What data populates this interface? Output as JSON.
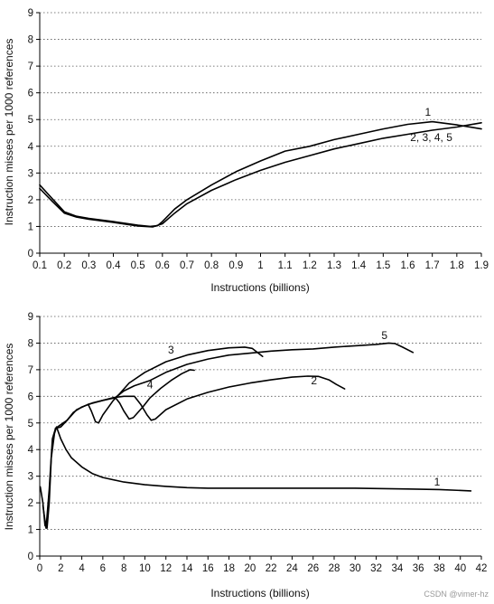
{
  "chart_data": [
    {
      "type": "line",
      "title": "",
      "xlabel": "Instructions (billions)",
      "ylabel": "Instruction misses per 1000 references",
      "xlim": [
        0.1,
        1.9
      ],
      "ylim": [
        0,
        9
      ],
      "xticks": [
        "0.1",
        "0.2",
        "0.3",
        "0.4",
        "0.5",
        "0.6",
        "0.7",
        "0.8",
        "0.9",
        "1",
        "1.1",
        "1.2",
        "1.3",
        "1.4",
        "1.5",
        "1.6",
        "1.7",
        "1.8",
        "1.9"
      ],
      "yticks": [
        "0",
        "1",
        "2",
        "3",
        "4",
        "5",
        "6",
        "7",
        "8",
        "9"
      ],
      "grid": "horizontal dotted",
      "series": [
        {
          "name": "1",
          "points": [
            [
              0.1,
              2.55
            ],
            [
              0.15,
              2.05
            ],
            [
              0.2,
              1.55
            ],
            [
              0.25,
              1.38
            ],
            [
              0.3,
              1.3
            ],
            [
              0.4,
              1.18
            ],
            [
              0.5,
              1.05
            ],
            [
              0.55,
              1.0
            ],
            [
              0.58,
              1.03
            ],
            [
              0.6,
              1.18
            ],
            [
              0.65,
              1.65
            ],
            [
              0.7,
              2.0
            ],
            [
              0.8,
              2.55
            ],
            [
              0.9,
              3.05
            ],
            [
              1.0,
              3.45
            ],
            [
              1.1,
              3.82
            ],
            [
              1.2,
              4.0
            ],
            [
              1.3,
              4.25
            ],
            [
              1.4,
              4.45
            ],
            [
              1.5,
              4.65
            ],
            [
              1.6,
              4.82
            ],
            [
              1.7,
              4.92
            ],
            [
              1.8,
              4.8
            ],
            [
              1.9,
              4.65
            ]
          ]
        },
        {
          "name": "2, 3, 4, 5",
          "points": [
            [
              0.1,
              2.42
            ],
            [
              0.15,
              1.95
            ],
            [
              0.2,
              1.5
            ],
            [
              0.25,
              1.35
            ],
            [
              0.3,
              1.27
            ],
            [
              0.4,
              1.15
            ],
            [
              0.5,
              1.02
            ],
            [
              0.56,
              0.98
            ],
            [
              0.6,
              1.1
            ],
            [
              0.65,
              1.5
            ],
            [
              0.7,
              1.85
            ],
            [
              0.8,
              2.35
            ],
            [
              0.9,
              2.75
            ],
            [
              1.0,
              3.1
            ],
            [
              1.1,
              3.4
            ],
            [
              1.2,
              3.65
            ],
            [
              1.3,
              3.9
            ],
            [
              1.4,
              4.1
            ],
            [
              1.5,
              4.3
            ],
            [
              1.6,
              4.45
            ],
            [
              1.7,
              4.6
            ],
            [
              1.8,
              4.72
            ],
            [
              1.9,
              4.88
            ]
          ]
        }
      ],
      "annotations": [
        {
          "text": "1",
          "x": 1.67,
          "y": 5.15
        },
        {
          "text": "2, 3, 4, 5",
          "x": 1.61,
          "y": 4.2
        }
      ]
    },
    {
      "type": "line",
      "title": "",
      "xlabel": "Instructions (billions)",
      "ylabel": "Instruction misses per 1000 references",
      "xlim": [
        0,
        42
      ],
      "ylim": [
        0,
        9
      ],
      "xticks": [
        "0",
        "2",
        "4",
        "6",
        "8",
        "10",
        "12",
        "14",
        "16",
        "18",
        "20",
        "22",
        "24",
        "26",
        "28",
        "30",
        "32",
        "34",
        "36",
        "38",
        "40",
        "42"
      ],
      "yticks": [
        "0",
        "1",
        "2",
        "3",
        "4",
        "5",
        "6",
        "7",
        "8",
        "9"
      ],
      "grid": "horizontal dotted",
      "series": [
        {
          "name": "1",
          "points": [
            [
              0.05,
              2.6
            ],
            [
              0.3,
              2.0
            ],
            [
              0.5,
              1.15
            ],
            [
              0.7,
              1.05
            ],
            [
              0.9,
              2.0
            ],
            [
              1.1,
              3.7
            ],
            [
              1.4,
              4.6
            ],
            [
              1.6,
              4.85
            ],
            [
              2.0,
              4.4
            ],
            [
              2.5,
              4.0
            ],
            [
              3.0,
              3.7
            ],
            [
              4.0,
              3.35
            ],
            [
              5.0,
              3.1
            ],
            [
              6.0,
              2.95
            ],
            [
              8.0,
              2.78
            ],
            [
              10,
              2.68
            ],
            [
              12,
              2.62
            ],
            [
              14,
              2.57
            ],
            [
              16,
              2.55
            ],
            [
              20,
              2.55
            ],
            [
              25,
              2.55
            ],
            [
              30,
              2.55
            ],
            [
              35,
              2.52
            ],
            [
              38,
              2.5
            ],
            [
              41,
              2.45
            ]
          ]
        },
        {
          "name": "2",
          "points": [
            [
              0.3,
              1.9
            ],
            [
              0.6,
              1.05
            ],
            [
              0.9,
              2.5
            ],
            [
              1.2,
              4.4
            ],
            [
              1.5,
              4.8
            ],
            [
              2.0,
              4.85
            ],
            [
              2.6,
              5.1
            ],
            [
              3.2,
              5.4
            ],
            [
              4.0,
              5.6
            ],
            [
              5.0,
              5.75
            ],
            [
              6.0,
              5.85
            ],
            [
              7.0,
              5.95
            ],
            [
              8.0,
              6.0
            ],
            [
              9.0,
              6.0
            ],
            [
              9.6,
              5.7
            ],
            [
              10.2,
              5.3
            ],
            [
              10.6,
              5.1
            ],
            [
              11.0,
              5.15
            ],
            [
              12,
              5.5
            ],
            [
              14,
              5.9
            ],
            [
              16,
              6.15
            ],
            [
              18,
              6.35
            ],
            [
              20,
              6.5
            ],
            [
              22,
              6.62
            ],
            [
              24,
              6.72
            ],
            [
              25.5,
              6.76
            ],
            [
              26.5,
              6.75
            ],
            [
              27.5,
              6.62
            ],
            [
              28.2,
              6.45
            ],
            [
              29,
              6.28
            ]
          ]
        },
        {
          "name": "3",
          "points": [
            [
              1.5,
              4.8
            ],
            [
              2.6,
              5.1
            ],
            [
              3.5,
              5.5
            ],
            [
              4.6,
              5.7
            ],
            [
              4.9,
              5.45
            ],
            [
              5.3,
              5.05
            ],
            [
              5.6,
              5.0
            ],
            [
              6.0,
              5.3
            ],
            [
              7.0,
              5.85
            ],
            [
              7.6,
              6.1
            ],
            [
              8.5,
              6.5
            ],
            [
              10,
              6.9
            ],
            [
              12,
              7.3
            ],
            [
              14,
              7.55
            ],
            [
              16,
              7.72
            ],
            [
              18,
              7.82
            ],
            [
              19.5,
              7.85
            ],
            [
              20.2,
              7.8
            ],
            [
              20.7,
              7.65
            ],
            [
              21.2,
              7.5
            ]
          ]
        },
        {
          "name": "4",
          "points": [
            [
              4.6,
              5.7
            ],
            [
              6.0,
              5.85
            ],
            [
              7.2,
              5.95
            ],
            [
              7.6,
              5.75
            ],
            [
              8.0,
              5.45
            ],
            [
              8.5,
              5.15
            ],
            [
              8.9,
              5.2
            ],
            [
              9.8,
              5.6
            ],
            [
              10.5,
              5.95
            ],
            [
              11.5,
              6.3
            ],
            [
              12.5,
              6.6
            ],
            [
              13.5,
              6.85
            ],
            [
              14.3,
              7.0
            ],
            [
              14.7,
              6.98
            ]
          ]
        },
        {
          "name": "5",
          "points": [
            [
              7.2,
              5.95
            ],
            [
              8.0,
              6.2
            ],
            [
              9.0,
              6.4
            ],
            [
              10.5,
              6.6
            ],
            [
              12,
              6.9
            ],
            [
              14,
              7.2
            ],
            [
              16,
              7.4
            ],
            [
              18,
              7.55
            ],
            [
              20,
              7.62
            ],
            [
              22,
              7.7
            ],
            [
              24,
              7.75
            ],
            [
              26,
              7.78
            ],
            [
              28,
              7.85
            ],
            [
              30,
              7.9
            ],
            [
              32,
              7.95
            ],
            [
              33.2,
              8.0
            ],
            [
              33.8,
              7.98
            ],
            [
              34.5,
              7.85
            ],
            [
              35.5,
              7.65
            ]
          ]
        }
      ],
      "annotations": [
        {
          "text": "1",
          "x": 37.5,
          "y": 2.65
        },
        {
          "text": "2",
          "x": 25.8,
          "y": 6.45
        },
        {
          "text": "3",
          "x": 12.2,
          "y": 7.6
        },
        {
          "text": "4",
          "x": 10.2,
          "y": 6.3
        },
        {
          "text": "5",
          "x": 32.5,
          "y": 8.15
        }
      ]
    }
  ],
  "watermark": "CSDN @vimer-hz"
}
